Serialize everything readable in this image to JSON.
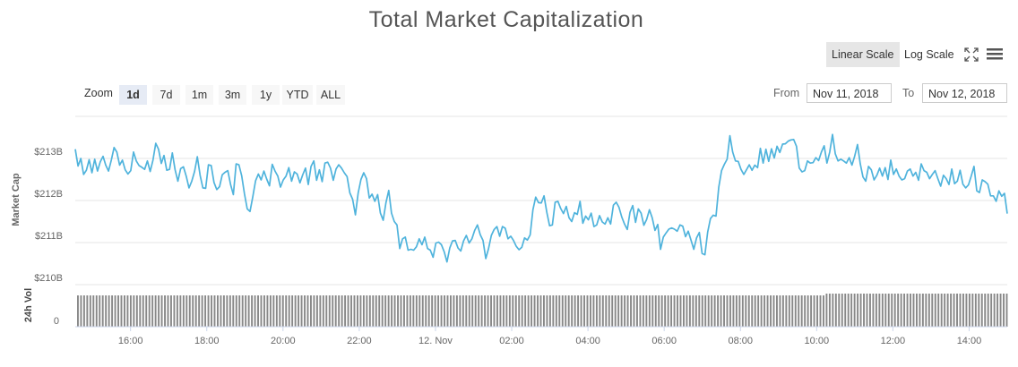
{
  "title": "Total Market Capitalization",
  "scale_buttons": [
    {
      "label": "Linear Scale",
      "active": true
    },
    {
      "label": "Log Scale",
      "active": false
    }
  ],
  "zoom": {
    "label": "Zoom",
    "buttons": [
      {
        "label": "1d",
        "active": true
      },
      {
        "label": "7d",
        "active": false
      },
      {
        "label": "1m",
        "active": false
      },
      {
        "label": "3m",
        "active": false
      },
      {
        "label": "1y",
        "active": false
      },
      {
        "label": "YTD",
        "active": false
      },
      {
        "label": "ALL",
        "active": false
      }
    ]
  },
  "range": {
    "from_label": "From",
    "from_value": "Nov 11, 2018",
    "to_label": "To",
    "to_value": "Nov 12, 2018"
  },
  "icons": {
    "fullscreen": "fullscreen-icon",
    "menu": "hamburger-menu-icon"
  },
  "colors": {
    "line": "#4fb3dc",
    "volume": "#888888",
    "axis_title": "#4fb3dc"
  },
  "chart_data": {
    "type": "line",
    "title": "Total Market Capitalization",
    "ylabel": "Market Cap",
    "ylabel_volume": "24h Vol",
    "y_ticks": [
      "$213B",
      "$212B",
      "$211B",
      "$210B"
    ],
    "y_tick_values": [
      213,
      212,
      211,
      210
    ],
    "ylim": [
      210,
      214
    ],
    "volume_ticks": [
      "0"
    ],
    "x_ticks": [
      "16:00",
      "18:00",
      "20:00",
      "22:00",
      "12. Nov",
      "02:00",
      "04:00",
      "06:00",
      "08:00",
      "10:00",
      "12:00",
      "14:00"
    ],
    "x_tick_hours": [
      16,
      18,
      20,
      22,
      24,
      26,
      28,
      30,
      32,
      34,
      36,
      38
    ],
    "xlim_hours": [
      14.55,
      39.0
    ],
    "grid": true,
    "series": [
      {
        "name": "",
        "x_start_hour": 14.55,
        "x_end_hour": 39.0,
        "values_billion_usd": [
          213.22,
          212.82,
          213.0,
          212.62,
          212.72,
          212.97,
          212.66,
          212.98,
          212.7,
          212.92,
          213.05,
          212.84,
          212.7,
          212.96,
          213.26,
          213.15,
          212.84,
          212.96,
          212.73,
          212.63,
          212.71,
          213.15,
          212.94,
          212.83,
          212.79,
          212.74,
          212.94,
          212.69,
          212.96,
          213.36,
          213.22,
          212.88,
          213.07,
          212.72,
          212.74,
          213.13,
          212.73,
          212.46,
          212.76,
          212.8,
          212.58,
          212.3,
          212.46,
          212.69,
          213.04,
          212.6,
          212.3,
          212.29,
          212.85,
          212.83,
          212.43,
          212.26,
          212.33,
          212.61,
          212.67,
          212.71,
          212.38,
          212.14,
          212.87,
          212.85,
          212.59,
          212.16,
          211.8,
          211.74,
          212.09,
          212.47,
          212.63,
          212.49,
          212.7,
          212.51,
          212.35,
          212.86,
          212.7,
          212.58,
          212.32,
          212.49,
          212.58,
          212.78,
          212.46,
          212.68,
          212.63,
          212.42,
          212.61,
          212.77,
          212.38,
          212.81,
          212.94,
          212.48,
          212.73,
          212.45,
          212.89,
          212.91,
          212.77,
          212.48,
          212.75,
          212.85,
          212.77,
          212.66,
          212.57,
          212.18,
          212.03,
          211.66,
          212.18,
          212.5,
          212.66,
          212.52,
          212.06,
          212.15,
          211.98,
          212.14,
          211.7,
          211.53,
          211.95,
          212.24,
          211.7,
          211.5,
          211.42,
          210.86,
          211.09,
          211.13,
          210.82,
          210.84,
          210.82,
          210.9,
          211.09,
          210.95,
          211.13,
          210.86,
          210.82,
          210.65,
          210.99,
          211.01,
          210.95,
          210.78,
          210.54,
          210.87,
          211.04,
          211.05,
          210.87,
          210.8,
          211.04,
          211.17,
          210.99,
          211.09,
          211.29,
          211.42,
          211.19,
          211.05,
          210.62,
          210.86,
          211.17,
          211.31,
          211.38,
          211.15,
          211.38,
          211.34,
          211.09,
          211.15,
          211.05,
          210.91,
          210.83,
          210.89,
          211.11,
          211.06,
          211.18,
          211.78,
          212.08,
          211.95,
          211.94,
          212.11,
          211.72,
          211.4,
          211.42,
          211.96,
          211.98,
          211.81,
          211.69,
          211.86,
          211.59,
          211.5,
          211.71,
          211.67,
          211.98,
          211.46,
          211.63,
          211.54,
          211.7,
          211.38,
          211.42,
          211.64,
          211.49,
          211.44,
          211.59,
          211.44,
          211.89,
          211.96,
          211.84,
          211.61,
          211.44,
          211.31,
          211.72,
          211.88,
          211.48,
          211.8,
          211.7,
          211.41,
          211.55,
          211.78,
          211.59,
          211.29,
          211.43,
          210.84,
          211.13,
          211.23,
          211.32,
          211.35,
          211.32,
          211.27,
          211.42,
          211.39,
          211.14,
          211.27,
          211.06,
          210.84,
          211.11,
          211.24,
          210.74,
          210.71,
          211.25,
          211.57,
          211.65,
          211.63,
          212.32,
          212.71,
          212.86,
          212.98,
          213.54,
          213.15,
          212.94,
          212.93,
          212.74,
          212.62,
          212.73,
          212.85,
          212.72,
          212.84,
          212.78,
          213.24,
          212.89,
          213.22,
          212.93,
          213.23,
          213.01,
          213.29,
          213.14,
          213.34,
          213.35,
          213.41,
          213.44,
          213.45,
          213.29,
          212.77,
          212.68,
          212.71,
          212.94,
          212.89,
          212.9,
          213.02,
          212.95,
          213.15,
          213.3,
          212.89,
          213.15,
          213.57,
          213.11,
          212.94,
          212.98,
          212.94,
          212.89,
          213.02,
          212.84,
          213.06,
          213.33,
          212.87,
          212.56,
          212.46,
          212.81,
          212.73,
          212.49,
          212.6,
          212.77,
          212.58,
          212.78,
          212.5,
          212.96,
          212.62,
          212.75,
          212.58,
          212.49,
          212.52,
          212.7,
          212.75,
          212.58,
          212.67,
          212.48,
          212.87,
          212.71,
          212.67,
          212.52,
          212.62,
          212.71,
          212.52,
          212.34,
          212.6,
          212.52,
          212.38,
          212.75,
          212.4,
          212.46,
          212.72,
          212.39,
          212.3,
          212.37,
          212.58,
          212.81,
          212.23,
          212.19,
          212.49,
          212.45,
          212.39,
          212.11,
          212.11,
          211.98,
          212.23,
          212.1,
          212.17,
          211.69
        ]
      },
      {
        "name": "",
        "type": "bar",
        "description_count": 300,
        "values_relative": 1.0
      }
    ]
  }
}
